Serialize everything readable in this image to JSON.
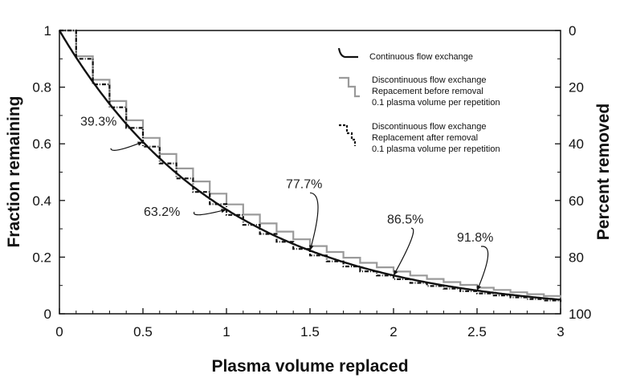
{
  "chart_data": {
    "type": "line",
    "xlabel": "Plasma volume replaced",
    "ylabel": "Fraction remaining",
    "y2label": "Percent removed",
    "xlim": [
      0,
      3
    ],
    "ylim": [
      0,
      1
    ],
    "y2lim": [
      100,
      0
    ],
    "x_ticks": [
      "0",
      "0.5",
      "1",
      "1.5",
      "2",
      "2.5",
      "3"
    ],
    "y_ticks": [
      "0",
      "0.2",
      "0.4",
      "0.6",
      "0.8",
      "1"
    ],
    "y2_ticks": [
      "100",
      "80",
      "60",
      "40",
      "20",
      "0"
    ],
    "grid": false,
    "legend_position": "top-right",
    "series": [
      {
        "name": "Continuous flow exchange",
        "style": "solid",
        "color": "#111111",
        "function": "exp(-x)",
        "x": [
          0,
          0.25,
          0.5,
          0.75,
          1.0,
          1.25,
          1.5,
          1.75,
          2.0,
          2.25,
          2.5,
          2.75,
          3.0
        ],
        "values": [
          1.0,
          0.779,
          0.607,
          0.472,
          0.368,
          0.287,
          0.223,
          0.174,
          0.135,
          0.105,
          0.082,
          0.064,
          0.05
        ]
      },
      {
        "name": "Discontinuous flow exchange Repacement before removal 0.1 plasma volume per repetition",
        "legend_lines": [
          "Discontinuous flow exchange",
          "Repacement before removal",
          "0.1 plasma volume per repetition"
        ],
        "style": "step",
        "color": "#999999",
        "step": 0.1,
        "values": [
          1.0,
          0.909,
          0.826,
          0.751,
          0.683,
          0.621,
          0.564,
          0.513,
          0.467,
          0.424,
          0.386,
          0.35,
          0.319,
          0.29,
          0.263,
          0.239,
          0.218,
          0.198,
          0.18,
          0.164,
          0.149,
          0.135,
          0.123,
          0.112,
          0.102,
          0.092,
          0.084,
          0.076,
          0.069,
          0.063,
          0.057
        ]
      },
      {
        "name": "Discontinuous flow exchange Replacement after removal 0.1 plasma volume per repetition",
        "legend_lines": [
          "Discontinuous flow exchange",
          "Replacement after removal",
          "0.1 plasma volume per repetition"
        ],
        "style": "dashed-step",
        "color": "#111111",
        "step": 0.1,
        "values": [
          1.0,
          0.9,
          0.81,
          0.729,
          0.656,
          0.59,
          0.531,
          0.478,
          0.43,
          0.387,
          0.349,
          0.314,
          0.282,
          0.254,
          0.229,
          0.206,
          0.185,
          0.167,
          0.15,
          0.135,
          0.122,
          0.109,
          0.098,
          0.089,
          0.08,
          0.072,
          0.065,
          0.058,
          0.052,
          0.047,
          0.042
        ]
      }
    ],
    "annotations": [
      {
        "text": "39.3%",
        "x": 0.5,
        "y": 0.607
      },
      {
        "text": "63.2%",
        "x": 1.0,
        "y": 0.368
      },
      {
        "text": "77.7%",
        "x": 1.5,
        "y": 0.223
      },
      {
        "text": "86.5%",
        "x": 2.0,
        "y": 0.135
      },
      {
        "text": "91.8%",
        "x": 2.5,
        "y": 0.082
      }
    ]
  }
}
